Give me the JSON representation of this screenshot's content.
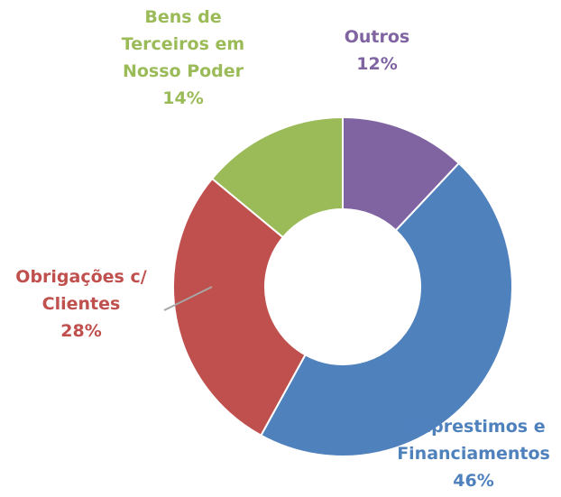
{
  "chart_data": {
    "type": "donut",
    "categories": [
      "Outros",
      "Emprestimos e Financiamentos",
      "Obrigações c/ Clientes",
      "Bens de Terceiros em Nosso Poder"
    ],
    "values": [
      12,
      46,
      28,
      14
    ],
    "value_labels": [
      "12%",
      "46%",
      "28%",
      "14%"
    ],
    "colors": [
      "#8064a2",
      "#4f81bd",
      "#c0504d",
      "#9bbb59"
    ]
  }
}
